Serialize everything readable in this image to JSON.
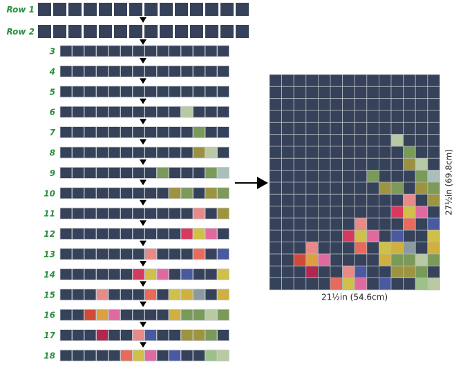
{
  "rows": [
    {
      "label": "Row 1",
      "cells": [
        "#354259",
        "#354259",
        "#354259",
        "#354259",
        "#354259",
        "#354259",
        "#354259",
        "#354259",
        "#354259",
        "#354259",
        "#354259",
        "#354259",
        "#354259",
        "#354259"
      ]
    },
    {
      "label": "Row 2",
      "cells": [
        "#354259",
        "#354259",
        "#354259",
        "#354259",
        "#354259",
        "#354259",
        "#354259",
        "#354259",
        "#354259",
        "#354259",
        "#354259",
        "#354259",
        "#354259",
        "#354259"
      ]
    },
    {
      "label": "3",
      "cells": [
        "#354259",
        "#354259",
        "#354259",
        "#354259",
        "#354259",
        "#354259",
        "#354259",
        "#354259",
        "#354259",
        "#354259",
        "#354259",
        "#354259",
        "#354259",
        "#354259"
      ]
    },
    {
      "label": "4",
      "cells": [
        "#354259",
        "#354259",
        "#354259",
        "#354259",
        "#354259",
        "#354259",
        "#354259",
        "#354259",
        "#354259",
        "#354259",
        "#354259",
        "#354259",
        "#354259",
        "#354259"
      ]
    },
    {
      "label": "5",
      "cells": [
        "#354259",
        "#354259",
        "#354259",
        "#354259",
        "#354259",
        "#354259",
        "#354259",
        "#354259",
        "#354259",
        "#354259",
        "#354259",
        "#354259",
        "#354259",
        "#354259"
      ]
    },
    {
      "label": "6",
      "cells": [
        "#354259",
        "#354259",
        "#354259",
        "#354259",
        "#354259",
        "#354259",
        "#354259",
        "#354259",
        "#354259",
        "#354259",
        "#b9c9a3",
        "#354259",
        "#354259",
        "#354259"
      ]
    },
    {
      "label": "7",
      "cells": [
        "#354259",
        "#354259",
        "#354259",
        "#354259",
        "#354259",
        "#354259",
        "#354259",
        "#354259",
        "#354259",
        "#354259",
        "#354259",
        "#7a9a5a",
        "#354259",
        "#354259"
      ]
    },
    {
      "label": "8",
      "cells": [
        "#354259",
        "#354259",
        "#354259",
        "#354259",
        "#354259",
        "#354259",
        "#354259",
        "#354259",
        "#354259",
        "#354259",
        "#354259",
        "#9a9040",
        "#b9c9a3",
        "#354259"
      ]
    },
    {
      "label": "9",
      "cells": [
        "#354259",
        "#354259",
        "#354259",
        "#354259",
        "#354259",
        "#354259",
        "#354259",
        "#354259",
        "#7a9a5a",
        "#354259",
        "#354259",
        "#354259",
        "#7a9a5a",
        "#a9bfb9"
      ]
    },
    {
      "label": "10",
      "cells": [
        "#354259",
        "#354259",
        "#354259",
        "#354259",
        "#354259",
        "#354259",
        "#354259",
        "#354259",
        "#354259",
        "#9d9440",
        "#7d9a5a",
        "#354259",
        "#9d9440",
        "#7d9a5a"
      ]
    },
    {
      "label": "11",
      "cells": [
        "#354259",
        "#354259",
        "#354259",
        "#354259",
        "#354259",
        "#354259",
        "#354259",
        "#354259",
        "#354259",
        "#354259",
        "#354259",
        "#e8898a",
        "#354259",
        "#9d9440"
      ]
    },
    {
      "label": "12",
      "cells": [
        "#354259",
        "#354259",
        "#354259",
        "#354259",
        "#354259",
        "#354259",
        "#354259",
        "#354259",
        "#354259",
        "#354259",
        "#d63a5e",
        "#cfc04a",
        "#e06aa0",
        "#354259"
      ]
    },
    {
      "label": "13",
      "cells": [
        "#354259",
        "#354259",
        "#354259",
        "#354259",
        "#354259",
        "#354259",
        "#354259",
        "#e88a88",
        "#354259",
        "#354259",
        "#354259",
        "#e86a5a",
        "#354259",
        "#4a5aa0"
      ]
    },
    {
      "label": "14",
      "cells": [
        "#354259",
        "#354259",
        "#354259",
        "#354259",
        "#354259",
        "#354259",
        "#d43a5e",
        "#cfc04a",
        "#e06aa0",
        "#354259",
        "#4a5aa0",
        "#354259",
        "#354259",
        "#cfc04a"
      ]
    },
    {
      "label": "15",
      "cells": [
        "#354259",
        "#354259",
        "#354259",
        "#e88a88",
        "#354259",
        "#354259",
        "#354259",
        "#e86a5a",
        "#354259",
        "#cfc04a",
        "#d0b040",
        "#8a9aa0",
        "#354259",
        "#d0b040"
      ]
    },
    {
      "label": "16",
      "cells": [
        "#354259",
        "#354259",
        "#d04a3a",
        "#dca040",
        "#e06aa0",
        "#354259",
        "#354259",
        "#354259",
        "#354259",
        "#d0b040",
        "#7a9a5a",
        "#7a9a5a",
        "#b9c9a3",
        "#7a9a5a"
      ]
    },
    {
      "label": "17",
      "cells": [
        "#354259",
        "#354259",
        "#354259",
        "#b02850",
        "#354259",
        "#354259",
        "#e88a88",
        "#4a5aa0",
        "#354259",
        "#354259",
        "#9d9440",
        "#9d9440",
        "#7a9a5a",
        "#354259"
      ]
    },
    {
      "label": "18",
      "cells": [
        "#354259",
        "#354259",
        "#354259",
        "#354259",
        "#354259",
        "#e86a5a",
        "#cfc04a",
        "#e06aa0",
        "#354259",
        "#4a5aa0",
        "#354259",
        "#354259",
        "#9ec08a",
        "#b9c9a3"
      ]
    }
  ],
  "dimensions": {
    "width": "21½in (54.6cm)",
    "height": "27½in (69.8cm)"
  }
}
